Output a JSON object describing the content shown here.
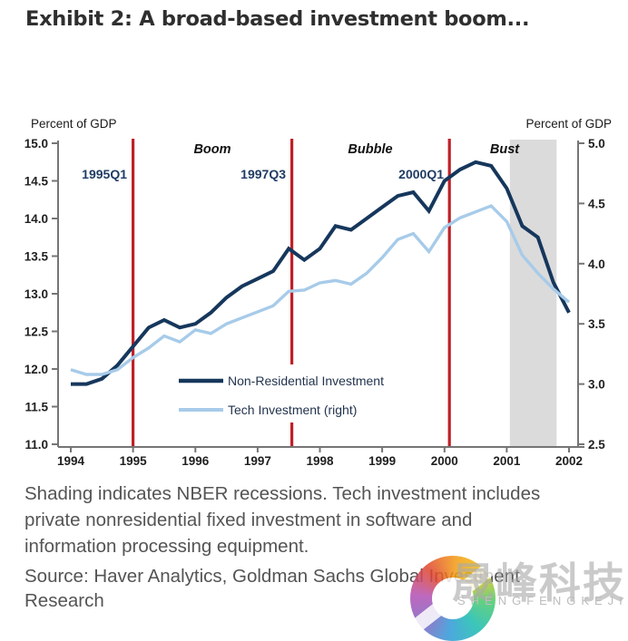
{
  "title": "Exhibit 2: A broad-based investment boom...",
  "chart_data": {
    "type": "line",
    "left_axis": {
      "label": "Percent of GDP",
      "min": 11.0,
      "max": 15.0,
      "ticks": [
        "15.0",
        "14.5",
        "14.0",
        "13.5",
        "13.0",
        "12.5",
        "12.0",
        "11.5",
        "11.0"
      ]
    },
    "right_axis": {
      "label": "Percent of GDP",
      "min": 2.5,
      "max": 5.0,
      "ticks": [
        "5.0",
        "4.5",
        "4.0",
        "3.5",
        "3.0",
        "2.5"
      ]
    },
    "x_axis": {
      "min": 1994,
      "max": 2002,
      "ticks": [
        "1994",
        "1995",
        "1996",
        "1997",
        "1998",
        "1999",
        "2000",
        "2001",
        "2002"
      ]
    },
    "grid": false,
    "x": [
      1994.0,
      1994.25,
      1994.5,
      1994.75,
      1995.0,
      1995.25,
      1995.5,
      1995.75,
      1996.0,
      1996.25,
      1996.5,
      1996.75,
      1997.0,
      1997.25,
      1997.5,
      1997.75,
      1998.0,
      1998.25,
      1998.5,
      1998.75,
      1999.0,
      1999.25,
      1999.5,
      1999.75,
      2000.0,
      2000.25,
      2000.5,
      2000.75,
      2001.0,
      2001.25,
      2001.5,
      2001.75,
      2002.0
    ],
    "series": [
      {
        "name": "Non-Residential Investment",
        "axis": "left",
        "color": "#16375c",
        "values": [
          11.8,
          11.8,
          11.87,
          12.05,
          12.3,
          12.55,
          12.65,
          12.55,
          12.6,
          12.75,
          12.95,
          13.1,
          13.2,
          13.3,
          13.6,
          13.45,
          13.6,
          13.9,
          13.85,
          14.0,
          14.15,
          14.3,
          14.35,
          14.1,
          14.5,
          14.65,
          14.75,
          14.7,
          14.4,
          13.9,
          13.75,
          13.15,
          12.75
        ]
      },
      {
        "name": "Tech Investment (right)",
        "axis": "right",
        "color": "#a7cbe9",
        "values": [
          3.12,
          3.08,
          3.08,
          3.12,
          3.22,
          3.3,
          3.4,
          3.35,
          3.45,
          3.42,
          3.5,
          3.55,
          3.6,
          3.65,
          3.77,
          3.78,
          3.84,
          3.86,
          3.83,
          3.92,
          4.05,
          4.2,
          4.25,
          4.1,
          4.3,
          4.38,
          4.43,
          4.48,
          4.35,
          4.07,
          3.92,
          3.79,
          3.68
        ]
      }
    ],
    "event_lines": [
      {
        "label": "1995Q1",
        "year": 1995.0
      },
      {
        "label": "1997Q3",
        "year": 1997.55
      },
      {
        "label": "2000Q1",
        "year": 2000.08
      }
    ],
    "event_line_color": "#bf2027",
    "phase_labels": [
      {
        "text": "Boom"
      },
      {
        "text": "Bubble"
      },
      {
        "text": "Bust"
      }
    ],
    "recession_band": {
      "start": 2001.05,
      "end": 2001.8,
      "color": "#dbdbdb"
    },
    "axis_color": "#757575",
    "legend_position": "inside-lower-left"
  },
  "footnote": {
    "lines": {
      "0": "Shading indicates NBER recessions. Tech investment includes",
      "1": "private nonresidential fixed investment in software and",
      "2": "information processing equipment."
    }
  },
  "source": {
    "lines": {
      "0": "Source: Haver Analytics, Goldman Sachs Global Investment",
      "1": "Research"
    }
  },
  "watermark": {
    "cn": "晟峰科技",
    "en": "SHENGFENGKEJI"
  }
}
